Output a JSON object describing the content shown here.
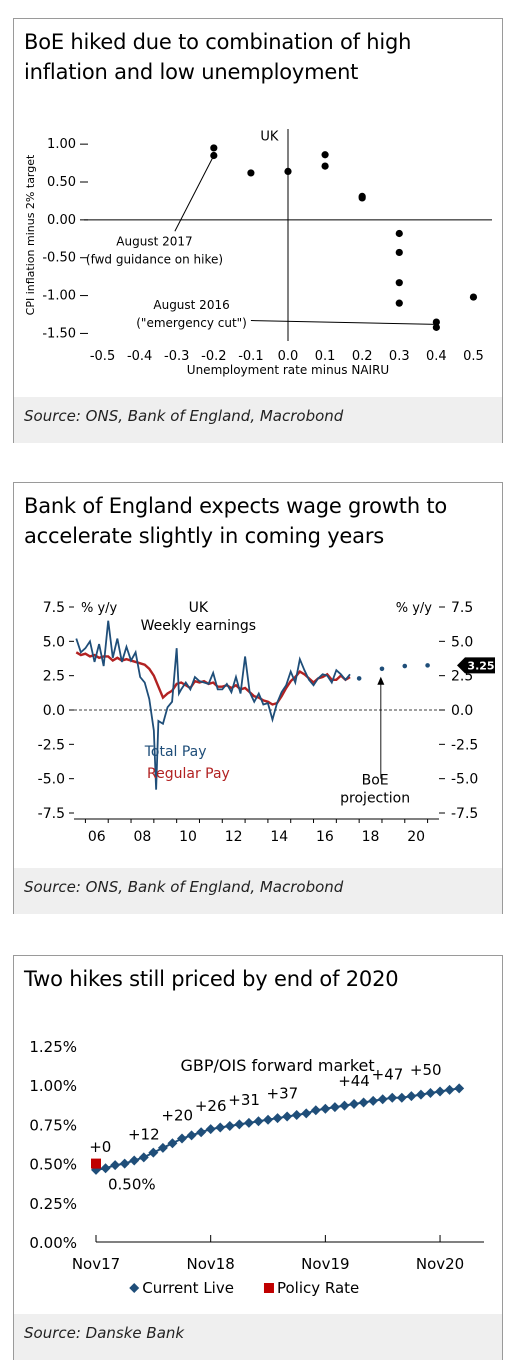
{
  "chart_data": [
    {
      "type": "scatter",
      "title": "BoE hiked due to combination of high inflation and low unemployment",
      "series_label": "UK",
      "xlabel": "Unemployment rate minus NAIRU",
      "ylabel": "CPI inflation minus 2% target",
      "xlim": [
        -0.55,
        0.55
      ],
      "ylim": [
        -1.6,
        1.2
      ],
      "xticks": [
        "-0.5",
        "-0.4",
        "-0.3",
        "-0.2",
        "-0.1",
        "0.0",
        "0.1",
        "0.2",
        "0.3",
        "0.4",
        "0.5"
      ],
      "yticks": [
        "1.00",
        "0.50",
        "0.00",
        "-0.50",
        "-1.00",
        "-1.50"
      ],
      "points": [
        {
          "x": -0.2,
          "y": 0.95
        },
        {
          "x": -0.2,
          "y": 0.85
        },
        {
          "x": -0.1,
          "y": 0.62
        },
        {
          "x": 0.0,
          "y": 0.64
        },
        {
          "x": 0.1,
          "y": 0.86
        },
        {
          "x": 0.1,
          "y": 0.71
        },
        {
          "x": 0.2,
          "y": 0.31
        },
        {
          "x": 0.2,
          "y": 0.29
        },
        {
          "x": 0.3,
          "y": -0.18
        },
        {
          "x": 0.3,
          "y": -0.43
        },
        {
          "x": 0.3,
          "y": -0.83
        },
        {
          "x": 0.3,
          "y": -1.1
        },
        {
          "x": 0.4,
          "y": -1.35
        },
        {
          "x": 0.4,
          "y": -1.42
        },
        {
          "x": 0.5,
          "y": -1.02
        }
      ],
      "annotations": [
        {
          "text": "August 2017\n(fwd guidance on hike)",
          "point_x": -0.2,
          "point_y": 0.85
        },
        {
          "text": "August 2016\n(\"emergency cut\")",
          "point_x": 0.4,
          "point_y": -1.38
        }
      ],
      "source": "Source: ONS, Bank of England, Macrobond"
    },
    {
      "type": "line",
      "title": "Bank of England expects wage growth to accelerate slightly in coming years",
      "header_label": "UK\nWeekly earnings",
      "ylabel_left": "% y/y",
      "ylabel_right": "% y/y",
      "ylim": [
        -7.5,
        7.5
      ],
      "yticks": [
        "7.5",
        "5.0",
        "2.5",
        "0.0",
        "-2.5",
        "-5.0",
        "-7.5"
      ],
      "xticks": [
        "06",
        "08",
        "10",
        "12",
        "14",
        "16",
        "18",
        "20"
      ],
      "xlim": [
        2005.5,
        2021.5
      ],
      "series": [
        {
          "name": "Total Pay",
          "color": "#1f4e79",
          "x": [
            2005.6,
            2005.8,
            2006.0,
            2006.2,
            2006.4,
            2006.6,
            2006.8,
            2007.0,
            2007.2,
            2007.4,
            2007.6,
            2007.8,
            2008.0,
            2008.2,
            2008.4,
            2008.6,
            2008.8,
            2009.0,
            2009.1,
            2009.2,
            2009.4,
            2009.6,
            2009.8,
            2010.0,
            2010.1,
            2010.2,
            2010.4,
            2010.6,
            2010.8,
            2011.0,
            2011.2,
            2011.4,
            2011.6,
            2011.8,
            2012.0,
            2012.2,
            2012.4,
            2012.6,
            2012.8,
            2013.0,
            2013.2,
            2013.4,
            2013.6,
            2013.8,
            2014.0,
            2014.2,
            2014.4,
            2014.6,
            2014.8,
            2015.0,
            2015.2,
            2015.4,
            2015.6,
            2015.8,
            2016.0,
            2016.2,
            2016.4,
            2016.6,
            2016.8,
            2017.0,
            2017.2,
            2017.4,
            2017.6
          ],
          "y": [
            5.2,
            4.2,
            4.5,
            5.0,
            3.5,
            4.8,
            3.2,
            6.5,
            3.8,
            5.2,
            3.5,
            4.6,
            3.6,
            4.2,
            2.4,
            2.0,
            0.8,
            -1.5,
            -5.8,
            -0.8,
            -1.0,
            0.2,
            0.6,
            4.5,
            1.2,
            1.5,
            2.0,
            1.5,
            2.4,
            2.1,
            2.0,
            1.9,
            2.7,
            1.5,
            1.5,
            1.9,
            1.3,
            2.4,
            1.2,
            3.9,
            1.3,
            0.6,
            1.2,
            0.4,
            0.5,
            -0.7,
            0.5,
            1.3,
            1.8,
            2.8,
            2.0,
            3.7,
            2.9,
            2.2,
            1.8,
            2.3,
            2.6,
            2.5,
            2.0,
            2.9,
            2.6,
            2.2,
            2.6
          ]
        },
        {
          "name": "Regular Pay",
          "color": "#b22222",
          "x": [
            2005.6,
            2005.8,
            2006.0,
            2006.2,
            2006.4,
            2006.6,
            2006.8,
            2007.0,
            2007.2,
            2007.4,
            2007.6,
            2007.8,
            2008.0,
            2008.2,
            2008.4,
            2008.6,
            2008.8,
            2009.0,
            2009.2,
            2009.4,
            2009.6,
            2009.8,
            2010.0,
            2010.2,
            2010.4,
            2010.6,
            2010.8,
            2011.0,
            2011.2,
            2011.4,
            2011.6,
            2011.8,
            2012.0,
            2012.2,
            2012.4,
            2012.6,
            2012.8,
            2013.0,
            2013.2,
            2013.4,
            2013.6,
            2013.8,
            2014.0,
            2014.2,
            2014.4,
            2014.6,
            2014.8,
            2015.0,
            2015.2,
            2015.4,
            2015.6,
            2015.8,
            2016.0,
            2016.2,
            2016.4,
            2016.6,
            2016.8,
            2017.0,
            2017.2,
            2017.4,
            2017.6
          ],
          "y": [
            4.2,
            4.0,
            4.1,
            3.9,
            4.0,
            3.8,
            3.9,
            3.9,
            3.6,
            3.8,
            3.6,
            3.7,
            3.6,
            3.5,
            3.4,
            3.3,
            3.0,
            2.5,
            1.7,
            0.9,
            1.2,
            1.4,
            1.9,
            2.0,
            1.8,
            1.6,
            2.1,
            2.0,
            2.1,
            1.9,
            2.0,
            1.7,
            1.7,
            1.8,
            1.6,
            1.8,
            1.5,
            1.6,
            1.3,
            1.0,
            0.9,
            0.7,
            0.6,
            0.4,
            0.5,
            1.0,
            1.6,
            2.1,
            2.4,
            2.8,
            2.6,
            2.3,
            2.0,
            2.3,
            2.4,
            2.6,
            2.2,
            2.2,
            2.5,
            2.2,
            2.4
          ]
        },
        {
          "name": "BoE projection",
          "color": "#1f4e79",
          "x": [
            2018.0,
            2019.0,
            2020.0,
            2021.0
          ],
          "y": [
            2.3,
            3.0,
            3.2,
            3.25
          ]
        }
      ],
      "last_value_label": "3.25",
      "source": "Source: ONS, Bank of England, Macrobond"
    },
    {
      "type": "line",
      "title": "Two hikes still priced by end of 2020",
      "header_label": "GBP/OIS forward market",
      "ylim": [
        0,
        1.25
      ],
      "yticks": [
        "1.25%",
        "1.00%",
        "0.75%",
        "0.50%",
        "0.25%",
        "0.00%"
      ],
      "xticks": [
        "Nov17",
        "Nov18",
        "Nov19",
        "Nov20"
      ],
      "legend": [
        "Current Live",
        "Policy Rate"
      ],
      "legend_position": "bottom",
      "policy_rate": {
        "x": 0,
        "y": 0.5,
        "label": "0.50%",
        "color": "#c00000"
      },
      "series": [
        {
          "name": "Current Live",
          "color": "#1f4e79",
          "x": [
            0,
            1,
            2,
            3,
            4,
            5,
            6,
            7,
            8,
            9,
            10,
            11,
            12,
            13,
            14,
            15,
            16,
            17,
            18,
            19,
            20,
            21,
            22,
            23,
            24,
            25,
            26,
            27,
            28,
            29,
            30,
            31,
            32,
            33,
            34,
            35,
            36,
            37,
            38
          ],
          "y": [
            0.46,
            0.47,
            0.49,
            0.5,
            0.52,
            0.54,
            0.57,
            0.6,
            0.63,
            0.66,
            0.68,
            0.7,
            0.72,
            0.73,
            0.74,
            0.75,
            0.76,
            0.77,
            0.78,
            0.79,
            0.8,
            0.81,
            0.82,
            0.84,
            0.85,
            0.86,
            0.87,
            0.88,
            0.89,
            0.9,
            0.91,
            0.92,
            0.92,
            0.93,
            0.94,
            0.95,
            0.96,
            0.97,
            0.98
          ]
        }
      ],
      "hike_labels": [
        {
          "text": "+0",
          "x": 0.45
        },
        {
          "text": "+12",
          "x": 5
        },
        {
          "text": "+20",
          "x": 8.5
        },
        {
          "text": "+26",
          "x": 12
        },
        {
          "text": "+31",
          "x": 15.5
        },
        {
          "text": "+37",
          "x": 19.5
        },
        {
          "text": "+44",
          "x": 27
        },
        {
          "text": "+47",
          "x": 30.5
        },
        {
          "text": "+50",
          "x": 34.5
        }
      ],
      "source": "Source: Danske Bank"
    }
  ]
}
